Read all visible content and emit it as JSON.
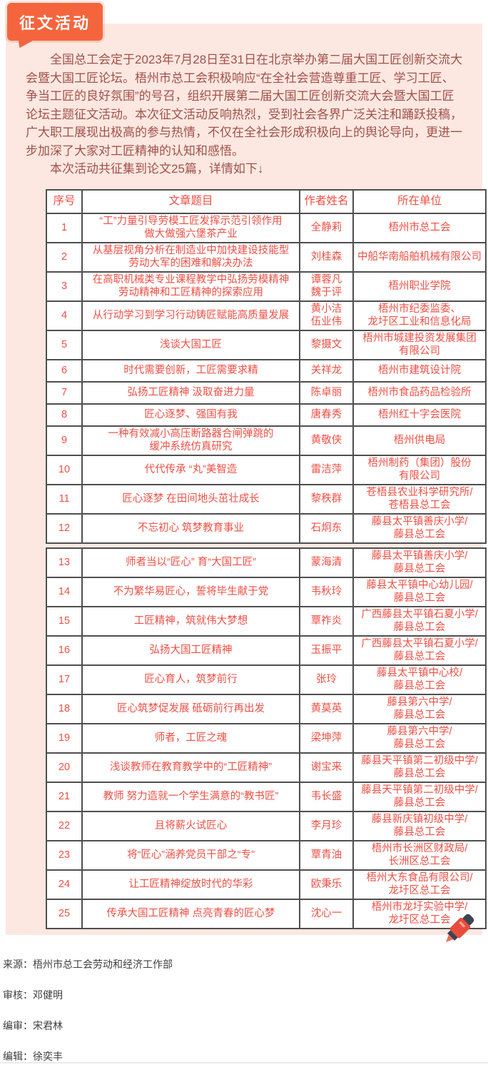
{
  "badge": {
    "label": "征文活动"
  },
  "colors": {
    "badge_bg": "#f4653e",
    "panel_bg": "#fce8e1",
    "intro_text": "#a2504a",
    "table_text": "#ee4f44",
    "table_border": "#4f4f4f",
    "footer_text": "#3d3d3d"
  },
  "intro": {
    "p1": "全国总工会定于2023年7月28日至31日在北京举办第二届大国工匠创新交流大会暨大国工匠论坛。梧州市总工会积极响应“在全社会营造尊重工匠、学习工匠、争当工匠的良好氛围”的号召，组织开展第二届大国工匠创新交流大会暨大国工匠论坛主题征文活动。本次征文活动反响热烈，受到社会各界广泛关注和踊跃投稿，广大职工展现出极高的参与热情，不仅在全社会形成积极向上的舆论导向，更进一步加深了大家对工匠精神的认知和感悟。",
    "p2": "本次活动共征集到论文25篇，详情如下↓"
  },
  "table": {
    "headers": [
      "序号",
      "文章题目",
      "作者姓名",
      "所在单位"
    ],
    "sections": [
      {
        "rows": [
          {
            "no": "1",
            "title": "“工”力量引导劳模工匠发挥示范引领作用\n做大做强六堡茶产业",
            "author": "全静莉",
            "unit": "梧州市总工会"
          },
          {
            "no": "2",
            "title": "从基层视角分析在制造业中加快建设技能型\n劳动大军的困难和解决办法",
            "author": "刘桂森",
            "unit": "中船华南船舶机械有限公司"
          },
          {
            "no": "3",
            "title": "在高职机械类专业课程教学中弘扬劳模精神\n劳动精神和工匠精神的探索应用",
            "author": "谭蓉凡\n魏于评",
            "unit": "梧州职业学院"
          },
          {
            "no": "4",
            "title": "从行动学习到学习行动铸匠赋能高质量发展",
            "author": "黄小洁\n伍业伟",
            "unit": "梧州市纪委监委、\n龙圩区工业和信息化局"
          },
          {
            "no": "5",
            "title": "浅谈大国工匠",
            "author": "黎摄文",
            "unit": "梧州市城建投资发展集团\n有限公司"
          },
          {
            "no": "6",
            "title": "时代需要创新，工匠需要求精",
            "author": "关祥龙",
            "unit": "梧州市建筑设计院"
          },
          {
            "no": "7",
            "title": "弘扬工匠精神 汲取奋进力量",
            "author": "陈卓丽",
            "unit": "梧州市食品药品检验所"
          },
          {
            "no": "8",
            "title": "匠心逐梦、强国有我",
            "author": "唐春秀",
            "unit": "梧州红十字会医院"
          },
          {
            "no": "9",
            "title": "一种有效减小高压断路器合闸弹跳的\n缓冲系统仿真研究",
            "author": "黄敬侠",
            "unit": "梧州供电局"
          },
          {
            "no": "10",
            "title": "代代传承 “丸”美智造",
            "author": "雷洁萍",
            "unit": "梧州制药（集团）股份\n有限公司"
          },
          {
            "no": "11",
            "title": "匠心逐梦 在田间地头茁壮成长",
            "author": "黎秩群",
            "unit": "苍梧县农业科学研究所/\n苍梧县总工会"
          },
          {
            "no": "12",
            "title": "不忘初心 筑梦教育事业",
            "author": "石炯东",
            "unit": "藤县太平镇善庆小学/\n藤县总工会"
          }
        ]
      },
      {
        "rows": [
          {
            "no": "13",
            "title": "师者当以“匠心” 育“大国工匠”",
            "author": "蒙海清",
            "unit": "藤县太平镇善庆小学/\n藤县总工会"
          },
          {
            "no": "14",
            "title": "不为繁华易匠心，誓将毕生献于党",
            "author": "韦秋玲",
            "unit": "藤县太平镇中心幼儿园/\n藤县总工会"
          },
          {
            "no": "15",
            "title": "工匠精神，筑就伟大梦想",
            "author": "覃祚炎",
            "unit": "广西藤县太平镇石夏小学/\n藤县总工会"
          },
          {
            "no": "16",
            "title": "弘扬大国工匠精神",
            "author": "玉振平",
            "unit": "广西藤县太平镇石夏小学/\n藤县总工会"
          },
          {
            "no": "17",
            "title": "匠心育人，筑梦前行",
            "author": "张玲",
            "unit": "藤县太平镇中心校/\n藤县总工会"
          },
          {
            "no": "18",
            "title": "匠心筑梦促发展 砥砺前行再出发",
            "author": "黄莫英",
            "unit": "藤县第六中学/\n藤县总工会"
          },
          {
            "no": "19",
            "title": "师者，工匠之魂",
            "author": "梁坤萍",
            "unit": "藤县第六中学/\n藤县总工会"
          },
          {
            "no": "20",
            "title": "浅谈教师在教育教学中的“工匠精神”",
            "author": "谢宝来",
            "unit": "藤县天平镇第二初级中学/\n藤县总工会"
          },
          {
            "no": "21",
            "title": "教师 努力造就一个学生满意的“教书匠”",
            "author": "韦长盛",
            "unit": "藤县天平镇第二初级中学/\n藤县总工会"
          },
          {
            "no": "22",
            "title": "且将薪火试匠心",
            "author": "李月珍",
            "unit": "藤县新庆镇初级中学/\n藤县总工会"
          },
          {
            "no": "23",
            "title": "将“匠心”涵养党员干部之“专”",
            "author": "覃青油",
            "unit": "梧州市长洲区财政局/\n长洲区总工会"
          },
          {
            "no": "24",
            "title": "让工匠精神绽放时代的华彩",
            "author": "欧秉乐",
            "unit": "梧州大东食品有限公司/\n龙圩区总工会"
          },
          {
            "no": "25",
            "title": "传承大国工匠精神 点亮青春的匠心梦",
            "author": "沈心一",
            "unit": "梧州市龙圩实验中学/\n龙圩区总工会"
          }
        ]
      }
    ]
  },
  "footer": {
    "source": "来源：梧州市总工会劳动和经济工作部",
    "reviewer": "审核：邓健明",
    "editor_reviewer": "编审：宋君林",
    "editor": "编辑：徐奕丰"
  },
  "icons": {
    "badge_shape": "speech-bubble-badge",
    "marker": "highlighter-marker-icon"
  }
}
